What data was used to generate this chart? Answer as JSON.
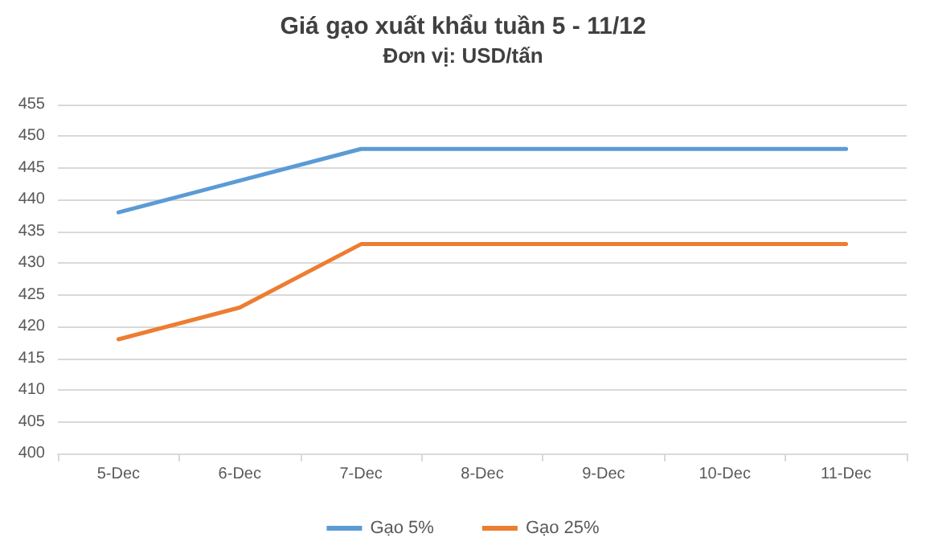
{
  "chart_data": {
    "type": "line",
    "title": "Giá gạo xuất khẩu tuần 5 - 11/12",
    "subtitle": "Đơn vị: USD/tấn",
    "categories": [
      "5-Dec",
      "6-Dec",
      "7-Dec",
      "8-Dec",
      "9-Dec",
      "10-Dec",
      "11-Dec"
    ],
    "series": [
      {
        "name": "Gạo 5%",
        "color": "#5b9bd5",
        "values": [
          438,
          443,
          448,
          448,
          448,
          448,
          448
        ]
      },
      {
        "name": "Gạo 25%",
        "color": "#ed7d31",
        "values": [
          418,
          423,
          433,
          433,
          433,
          433,
          433
        ]
      }
    ],
    "ylim": [
      400,
      455
    ],
    "yticks": [
      400,
      405,
      410,
      415,
      420,
      425,
      430,
      435,
      440,
      445,
      450,
      455
    ],
    "grid": "y",
    "legend": "bottom",
    "marker": "none",
    "line_style": "solid"
  }
}
